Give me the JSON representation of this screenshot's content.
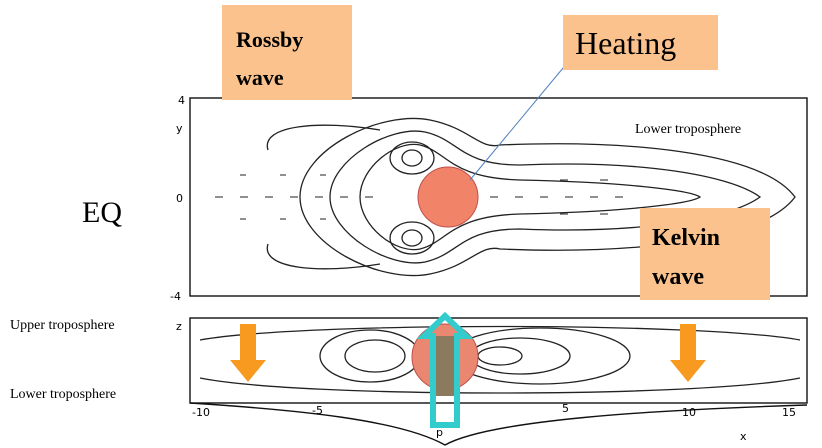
{
  "labels": {
    "rossby": [
      "Rossby",
      "wave"
    ],
    "heating": "Heating",
    "eq": "EQ",
    "kelvin": [
      "Kelvin",
      "wave"
    ],
    "lower_top": "Lower troposphere",
    "upper": "Upper troposphere",
    "lower_bottom": "Lower troposphere"
  },
  "top_panel": {
    "y_label": "y",
    "y_ticks": [
      "4",
      "0",
      "-4"
    ]
  },
  "bottom_panel": {
    "z_label": "z",
    "x_label": "x",
    "x_ticks": [
      "-10",
      "-5",
      "5",
      "10",
      "15"
    ],
    "p_label": "p"
  }
}
